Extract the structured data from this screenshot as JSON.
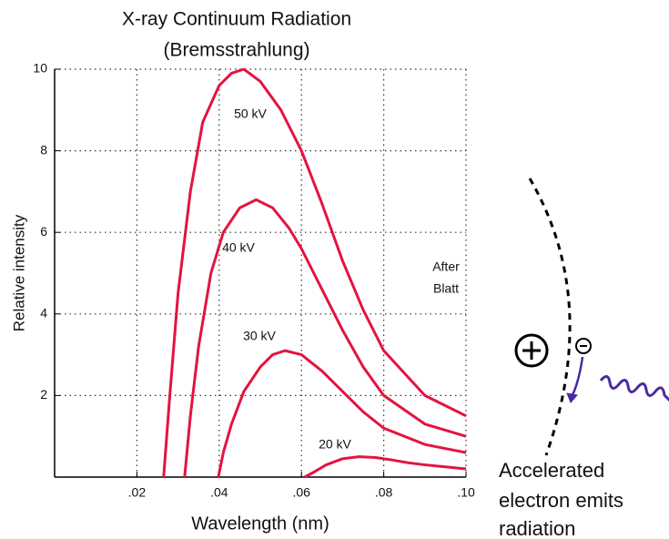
{
  "chart_data": {
    "type": "line",
    "title": "X-ray Continuum Radiation",
    "subtitle": "(Bremsstrahlung)",
    "x_label": "Wavelength (nm)",
    "y_label": "Relative intensity",
    "xlim": [
      0,
      0.1
    ],
    "ylim": [
      0,
      10
    ],
    "xticks": [
      {
        "value": 0.02,
        "label": ".02"
      },
      {
        "value": 0.04,
        "label": ".04"
      },
      {
        "value": 0.06,
        "label": ".06"
      },
      {
        "value": 0.08,
        "label": ".08"
      },
      {
        "value": 0.1,
        "label": ".10"
      }
    ],
    "yticks": [
      2,
      4,
      6,
      8,
      10
    ],
    "grid": true,
    "series": [
      {
        "name": "50 kV",
        "color": "#e3143f",
        "x": [
          0.0265,
          0.028,
          0.03,
          0.033,
          0.036,
          0.04,
          0.043,
          0.046,
          0.05,
          0.055,
          0.06,
          0.065,
          0.07,
          0.075,
          0.08,
          0.09,
          0.1
        ],
        "values": [
          0,
          2,
          4.5,
          7,
          8.7,
          9.6,
          9.9,
          10,
          9.7,
          9.0,
          8.0,
          6.7,
          5.3,
          4.1,
          3.1,
          2.0,
          1.5
        ]
      },
      {
        "name": "40 kV",
        "color": "#e3143f",
        "x": [
          0.0316,
          0.033,
          0.035,
          0.038,
          0.041,
          0.045,
          0.049,
          0.053,
          0.057,
          0.06,
          0.065,
          0.07,
          0.075,
          0.08,
          0.09,
          0.1
        ],
        "values": [
          0,
          1.5,
          3.2,
          5,
          6,
          6.6,
          6.8,
          6.6,
          6.1,
          5.6,
          4.6,
          3.6,
          2.7,
          2.0,
          1.3,
          1.0
        ]
      },
      {
        "name": "30 kV",
        "color": "#e3143f",
        "x": [
          0.0398,
          0.041,
          0.043,
          0.046,
          0.05,
          0.053,
          0.056,
          0.06,
          0.065,
          0.07,
          0.075,
          0.08,
          0.09,
          0.1
        ],
        "values": [
          0,
          0.6,
          1.3,
          2.1,
          2.7,
          3.0,
          3.1,
          3.0,
          2.6,
          2.1,
          1.6,
          1.2,
          0.8,
          0.6
        ]
      },
      {
        "name": "20 kV",
        "color": "#e3143f",
        "x": [
          0.0608,
          0.063,
          0.066,
          0.07,
          0.074,
          0.078,
          0.082,
          0.086,
          0.09,
          0.095,
          0.1
        ],
        "values": [
          0,
          0.12,
          0.3,
          0.45,
          0.5,
          0.48,
          0.42,
          0.35,
          0.3,
          0.25,
          0.2
        ]
      }
    ],
    "note_lines": [
      "After",
      "Blatt"
    ],
    "caption_lines": [
      "Accelerated",
      "electron emits",
      "radiation"
    ]
  }
}
